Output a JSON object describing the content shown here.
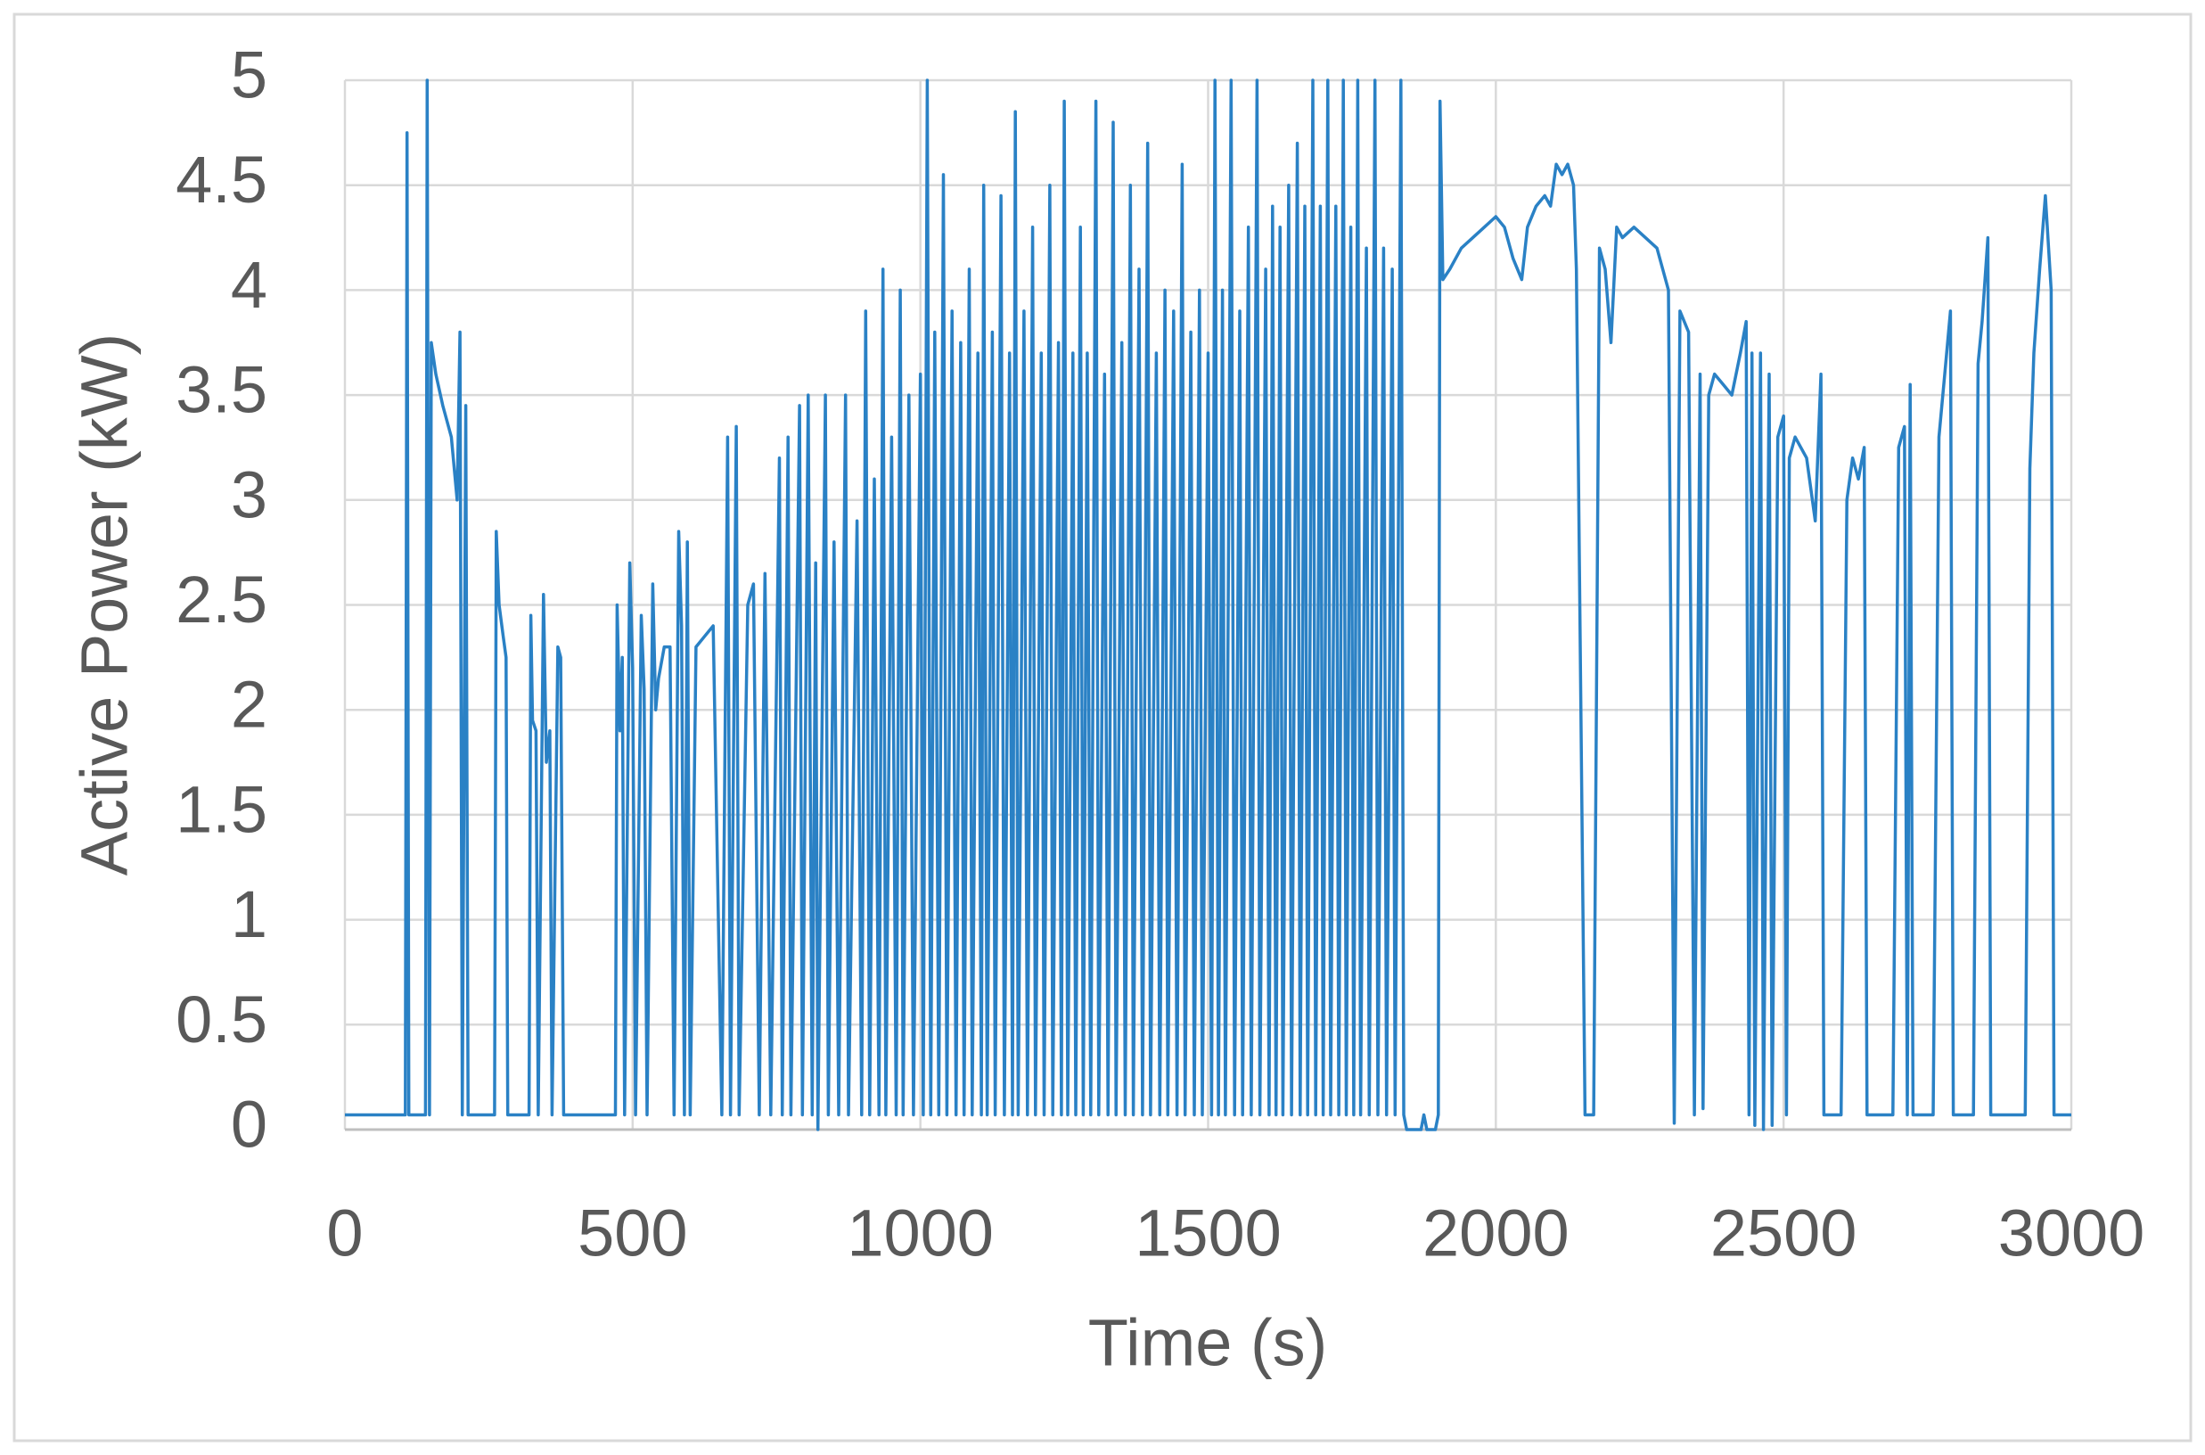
{
  "chart_data": {
    "type": "line",
    "x_label": "Time (s)",
    "y_label": "Active Power (kW)",
    "color": "#2a81c5",
    "grid": true,
    "xlim": [
      0,
      3000
    ],
    "xticks": [
      0,
      500,
      1000,
      1500,
      2000,
      2500,
      3000
    ],
    "ylim": [
      0,
      5
    ],
    "yticks": [
      0,
      0.5,
      1,
      1.5,
      2,
      2.5,
      3,
      3.5,
      4,
      4.5,
      5
    ],
    "x": [
      0,
      105,
      108,
      111,
      140,
      143,
      147,
      150,
      158,
      170,
      185,
      195,
      200,
      204,
      210,
      214,
      260,
      263,
      268,
      275,
      280,
      283,
      320,
      323,
      326,
      332,
      336,
      345,
      350,
      356,
      360,
      370,
      375,
      380,
      470,
      473,
      478,
      482,
      486,
      495,
      500,
      505,
      515,
      520,
      525,
      535,
      540,
      545,
      555,
      565,
      572,
      580,
      585,
      590,
      595,
      600,
      610,
      625,
      640,
      655,
      665,
      670,
      680,
      685,
      700,
      710,
      720,
      730,
      740,
      755,
      760,
      770,
      775,
      790,
      795,
      805,
      812,
      818,
      822,
      835,
      840,
      850,
      858,
      870,
      875,
      890,
      898,
      905,
      912,
      920,
      928,
      935,
      940,
      950,
      958,
      965,
      970,
      980,
      988,
      1000,
      1005,
      1012,
      1018,
      1025,
      1032,
      1040,
      1046,
      1055,
      1062,
      1070,
      1076,
      1085,
      1090,
      1100,
      1106,
      1110,
      1116,
      1125,
      1130,
      1140,
      1146,
      1155,
      1160,
      1165,
      1170,
      1180,
      1186,
      1195,
      1200,
      1210,
      1215,
      1225,
      1230,
      1240,
      1245,
      1250,
      1256,
      1265,
      1270,
      1278,
      1283,
      1290,
      1296,
      1305,
      1310,
      1320,
      1326,
      1335,
      1340,
      1350,
      1356,
      1365,
      1370,
      1380,
      1386,
      1395,
      1400,
      1410,
      1416,
      1425,
      1430,
      1440,
      1446,
      1455,
      1460,
      1470,
      1476,
      1485,
      1490,
      1500,
      1506,
      1512,
      1518,
      1525,
      1530,
      1540,
      1546,
      1555,
      1560,
      1570,
      1575,
      1585,
      1590,
      1600,
      1606,
      1612,
      1618,
      1625,
      1630,
      1640,
      1645,
      1655,
      1660,
      1668,
      1673,
      1682,
      1687,
      1695,
      1700,
      1708,
      1713,
      1722,
      1727,
      1735,
      1740,
      1748,
      1753,
      1760,
      1765,
      1775,
      1780,
      1790,
      1795,
      1805,
      1810,
      1820,
      1825,
      1835,
      1840,
      1845,
      1870,
      1875,
      1880,
      1895,
      1900,
      1903,
      1908,
      1920,
      1940,
      1960,
      1980,
      2000,
      2015,
      2030,
      2045,
      2055,
      2070,
      2085,
      2095,
      2105,
      2115,
      2125,
      2135,
      2140,
      2155,
      2170,
      2180,
      2190,
      2200,
      2210,
      2220,
      2240,
      2260,
      2280,
      2300,
      2310,
      2320,
      2335,
      2345,
      2355,
      2360,
      2370,
      2380,
      2395,
      2410,
      2425,
      2435,
      2440,
      2445,
      2450,
      2460,
      2465,
      2475,
      2480,
      2490,
      2500,
      2505,
      2510,
      2520,
      2540,
      2555,
      2565,
      2570,
      2600,
      2610,
      2620,
      2630,
      2640,
      2645,
      2690,
      2700,
      2710,
      2715,
      2720,
      2725,
      2760,
      2770,
      2780,
      2790,
      2795,
      2830,
      2838,
      2845,
      2855,
      2860,
      2920,
      2928,
      2935,
      2945,
      2955,
      2965,
      2970,
      3000
    ],
    "values": [
      0.07,
      0.07,
      4.75,
      0.07,
      0.07,
      5,
      0.07,
      3.75,
      3.6,
      3.45,
      3.3,
      3.0,
      3.8,
      0.07,
      3.45,
      0.07,
      0.07,
      2.85,
      2.5,
      2.35,
      2.25,
      0.07,
      0.07,
      2.45,
      1.95,
      1.9,
      0.07,
      2.55,
      1.75,
      1.9,
      0.07,
      2.3,
      2.25,
      0.07,
      0.07,
      2.5,
      1.9,
      2.25,
      0.07,
      2.7,
      2.2,
      0.07,
      2.45,
      2.1,
      0.07,
      2.6,
      2.0,
      2.15,
      2.3,
      2.3,
      0.07,
      2.85,
      2.4,
      0.07,
      2.8,
      0.07,
      2.3,
      2.35,
      2.4,
      0.07,
      3.3,
      0.07,
      3.35,
      0.07,
      2.5,
      2.6,
      0.07,
      2.65,
      0.07,
      3.2,
      0.07,
      3.3,
      0.07,
      3.45,
      0.07,
      3.5,
      0.07,
      2.7,
      0,
      3.5,
      0.07,
      2.8,
      0.07,
      3.5,
      0.07,
      2.9,
      0.07,
      3.9,
      0.07,
      3.1,
      0.07,
      4.1,
      0.07,
      3.3,
      0.07,
      4.0,
      0.07,
      3.5,
      0.07,
      3.6,
      0.07,
      5,
      0.07,
      3.8,
      0.07,
      4.55,
      0.07,
      3.9,
      0.07,
      3.75,
      0.07,
      4.1,
      0.07,
      3.7,
      0.07,
      4.5,
      0.07,
      3.8,
      0.07,
      4.45,
      0.07,
      3.7,
      0.07,
      4.85,
      0.07,
      3.9,
      0.07,
      4.3,
      0.07,
      3.7,
      0.07,
      4.5,
      0.07,
      3.75,
      0.07,
      4.9,
      0.07,
      3.7,
      0.07,
      4.3,
      0.07,
      3.7,
      0.07,
      4.9,
      0.07,
      3.6,
      0.07,
      4.8,
      0.07,
      3.75,
      0.07,
      4.5,
      0.07,
      4.1,
      0.07,
      4.7,
      0.07,
      3.7,
      0.07,
      4.0,
      0.07,
      3.9,
      0.07,
      4.6,
      0.07,
      3.8,
      0.07,
      4.0,
      0.07,
      3.7,
      0.07,
      5,
      0.07,
      4.0,
      0.07,
      5,
      0.07,
      3.9,
      0.07,
      4.3,
      0.07,
      5,
      0.07,
      4.1,
      0.07,
      4.4,
      0.07,
      4.3,
      0.07,
      4.5,
      0.07,
      4.7,
      0.07,
      4.4,
      0.07,
      5,
      0.07,
      4.4,
      0.07,
      5,
      0.07,
      4.4,
      0.07,
      5,
      0.07,
      4.3,
      0.07,
      5,
      0.07,
      4.2,
      0.07,
      5,
      0.07,
      4.2,
      0.07,
      4.1,
      0.07,
      5,
      0.07,
      0,
      0,
      0.07,
      0,
      0,
      0.07,
      4.9,
      4.05,
      4.1,
      4.2,
      4.25,
      4.3,
      4.35,
      4.3,
      4.15,
      4.05,
      4.3,
      4.4,
      4.45,
      4.4,
      4.6,
      4.55,
      4.6,
      4.5,
      4.1,
      0.07,
      0.07,
      4.2,
      4.1,
      3.75,
      4.3,
      4.25,
      4.3,
      4.25,
      4.2,
      4.0,
      0.03,
      3.9,
      3.8,
      0.07,
      3.6,
      0.1,
      3.5,
      3.6,
      3.55,
      3.5,
      3.7,
      3.85,
      0.07,
      3.7,
      0.02,
      3.7,
      0,
      3.6,
      0.02,
      3.3,
      3.4,
      0.07,
      3.2,
      3.3,
      3.2,
      2.9,
      3.6,
      0.07,
      0.07,
      3.0,
      3.2,
      3.1,
      3.25,
      0.07,
      0.07,
      3.25,
      3.35,
      0.07,
      3.55,
      0.07,
      0.07,
      3.3,
      3.6,
      3.9,
      0.07,
      0.07,
      3.65,
      3.85,
      4.25,
      0.07,
      0.07,
      3.15,
      3.7,
      4.1,
      4.45,
      4.0,
      0.07,
      0.07
    ]
  }
}
